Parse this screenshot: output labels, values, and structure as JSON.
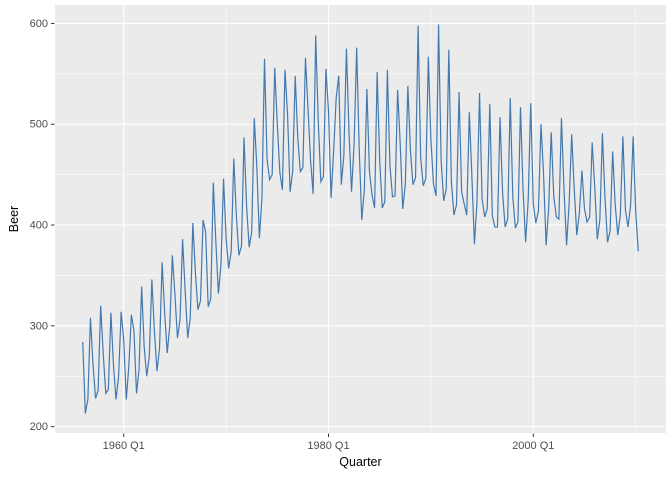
{
  "figure": {
    "background": "#FFFFFF"
  },
  "chart_data": {
    "type": "line",
    "title": "",
    "xlabel": "Quarter",
    "ylabel": "Beer",
    "legend": "none",
    "grid": true,
    "line_color": "#4379AE",
    "panel_background": "#EBEBEB",
    "grid_color": "#FFFFFF",
    "tick_color": "#333333",
    "tick_label_color": "#4D4D4D",
    "axis_title_color": "#000000",
    "x_start": 1956.0,
    "x_step": 0.25,
    "xlim": [
      1953.29,
      2012.96
    ],
    "ylim": [
      193.7,
      618.3
    ],
    "x_major_ticks": [
      {
        "value": 1960,
        "label": "1960 Q1"
      },
      {
        "value": 1980,
        "label": "1980 Q1"
      },
      {
        "value": 2000,
        "label": "2000 Q1"
      }
    ],
    "x_minor_gridlines": [
      1970,
      1990,
      2010
    ],
    "y_major_ticks": [
      {
        "value": 200,
        "label": "200"
      },
      {
        "value": 300,
        "label": "300"
      },
      {
        "value": 400,
        "label": "400"
      },
      {
        "value": 500,
        "label": "500"
      },
      {
        "value": 600,
        "label": "600"
      }
    ],
    "y_minor_gridlines": [
      250,
      350,
      450,
      550
    ],
    "values": [
      284,
      213,
      227,
      308,
      262,
      228,
      236,
      320,
      272,
      233,
      237,
      313,
      261,
      227,
      250,
      314,
      286,
      227,
      260,
      311,
      295,
      233,
      257,
      339,
      279,
      250,
      270,
      346,
      294,
      255,
      278,
      363,
      313,
      273,
      300,
      370,
      331,
      288,
      306,
      386,
      335,
      288,
      308,
      402,
      353,
      316,
      325,
      405,
      393,
      319,
      327,
      442,
      383,
      332,
      361,
      446,
      387,
      357,
      374,
      466,
      410,
      370,
      379,
      487,
      419,
      378,
      393,
      506,
      458,
      387,
      427,
      565,
      465,
      445,
      450,
      556,
      500,
      452,
      435,
      554,
      510,
      433,
      453,
      548,
      486,
      453,
      457,
      566,
      515,
      464,
      431,
      588,
      503,
      443,
      448,
      555,
      513,
      427,
      473,
      526,
      548,
      440,
      469,
      575,
      493,
      433,
      480,
      576,
      475,
      405,
      435,
      535,
      453,
      430,
      417,
      552,
      464,
      417,
      423,
      554,
      459,
      428,
      429,
      534,
      481,
      416,
      440,
      538,
      474,
      440,
      447,
      598,
      467,
      439,
      446,
      567,
      485,
      441,
      429,
      599,
      464,
      424,
      436,
      574,
      443,
      410,
      420,
      532,
      433,
      421,
      410,
      512,
      449,
      381,
      423,
      531,
      426,
      408,
      416,
      520,
      409,
      398,
      398,
      507,
      432,
      398,
      406,
      526,
      428,
      397,
      403,
      517,
      435,
      383,
      424,
      521,
      421,
      402,
      414,
      500,
      451,
      380,
      416,
      492,
      428,
      408,
      406,
      506,
      435,
      380,
      421,
      490,
      435,
      390,
      412,
      454,
      416,
      403,
      408,
      482,
      438,
      386,
      405,
      491,
      427,
      383,
      394,
      473,
      420,
      390,
      410,
      488,
      415,
      398,
      419,
      488,
      414,
      374
    ]
  }
}
